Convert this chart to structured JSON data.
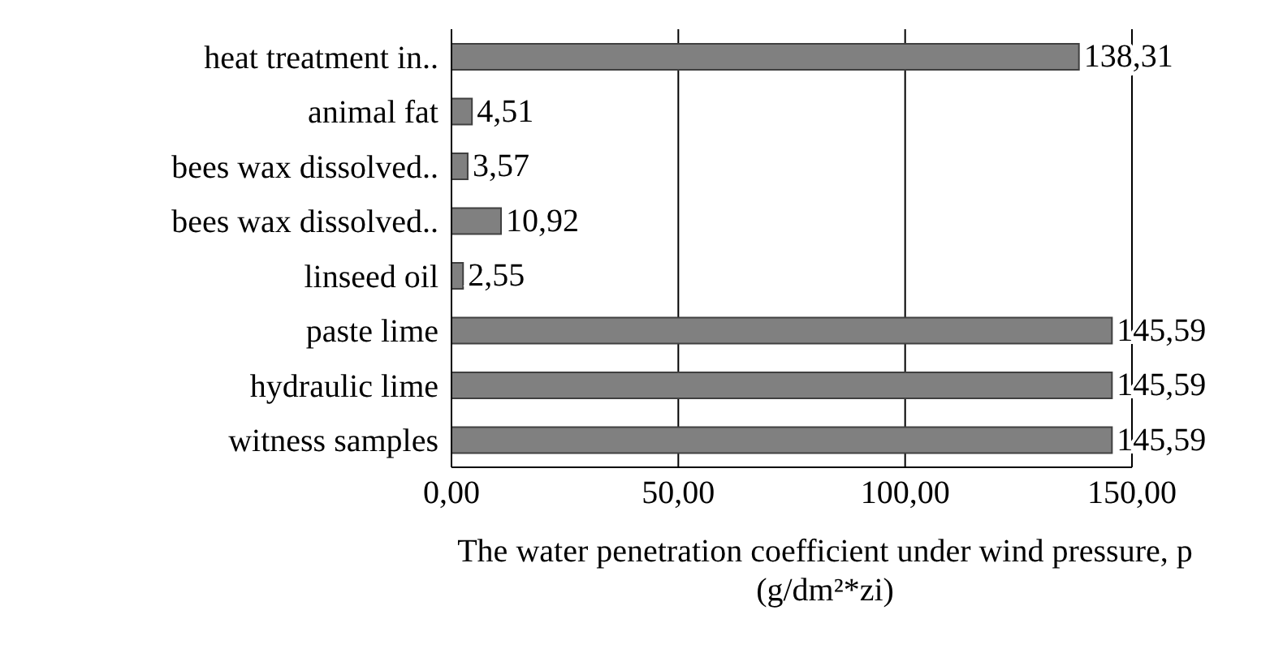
{
  "chart_data": {
    "type": "bar",
    "orientation": "horizontal",
    "xlabel": "The water penetration coefficient under wind pressure, p (g/dm²*zi)",
    "categories": [
      "heat treatment in..",
      "animal fat",
      "bees wax dissolved..",
      "bees wax dissolved..",
      "linseed oil",
      "paste lime",
      "hydraulic lime",
      "witness samples"
    ],
    "values": [
      138.31,
      4.51,
      3.57,
      10.92,
      2.55,
      145.59,
      145.59,
      145.59
    ],
    "value_labels": [
      "138,31",
      "4,51",
      "3,57",
      "10,92",
      "2,55",
      "145,59",
      "145,59",
      "145,59"
    ],
    "color": "#808080",
    "xlim": [
      0,
      150
    ],
    "xticks": [
      {
        "value": 0,
        "label": "0,00"
      },
      {
        "value": 50,
        "label": "50,00"
      },
      {
        "value": 100,
        "label": "100,00"
      },
      {
        "value": 150,
        "label": "150,00"
      }
    ],
    "grid": "x"
  }
}
